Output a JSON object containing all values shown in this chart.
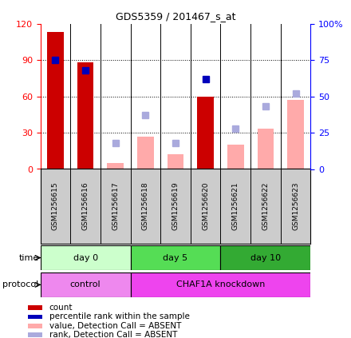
{
  "title": "GDS5359 / 201467_s_at",
  "samples": [
    "GSM1256615",
    "GSM1256616",
    "GSM1256617",
    "GSM1256618",
    "GSM1256619",
    "GSM1256620",
    "GSM1256621",
    "GSM1256622",
    "GSM1256623"
  ],
  "count_values": [
    113,
    88,
    0,
    0,
    0,
    60,
    0,
    0,
    0
  ],
  "rank_values": [
    75,
    68,
    0,
    0,
    0,
    62,
    0,
    0,
    0
  ],
  "absent_value_values": [
    0,
    0,
    5,
    27,
    12,
    0,
    20,
    33,
    57
  ],
  "absent_rank_values": [
    0,
    0,
    18,
    37,
    18,
    0,
    28,
    43,
    52
  ],
  "count_color": "#cc0000",
  "rank_color": "#0000bb",
  "absent_value_color": "#ffaaaa",
  "absent_rank_color": "#aaaadd",
  "ylim_left": [
    0,
    120
  ],
  "ylim_right": [
    0,
    100
  ],
  "yticks_left": [
    0,
    30,
    60,
    90,
    120
  ],
  "yticks_right": [
    0,
    25,
    50,
    75,
    100
  ],
  "yticklabels_left": [
    "0",
    "30",
    "60",
    "90",
    "120"
  ],
  "yticklabels_right": [
    "0",
    "25",
    "50",
    "75",
    "100%"
  ],
  "time_groups": [
    {
      "label": "day 0",
      "start": 0,
      "end": 3,
      "color": "#ccffcc"
    },
    {
      "label": "day 5",
      "start": 3,
      "end": 6,
      "color": "#55dd55"
    },
    {
      "label": "day 10",
      "start": 6,
      "end": 9,
      "color": "#33aa33"
    }
  ],
  "protocol_groups": [
    {
      "label": "control",
      "start": 0,
      "end": 3,
      "color": "#ee88ee"
    },
    {
      "label": "CHAF1A knockdown",
      "start": 3,
      "end": 9,
      "color": "#ee44ee"
    }
  ],
  "time_label": "time",
  "protocol_label": "protocol",
  "legend_items": [
    {
      "color": "#cc0000",
      "label": "count"
    },
    {
      "color": "#0000bb",
      "label": "percentile rank within the sample"
    },
    {
      "color": "#ffaaaa",
      "label": "value, Detection Call = ABSENT"
    },
    {
      "color": "#aaaadd",
      "label": "rank, Detection Call = ABSENT"
    }
  ],
  "bar_width": 0.55,
  "marker_size": 6,
  "grid_color": "black",
  "grid_linestyle": ":"
}
